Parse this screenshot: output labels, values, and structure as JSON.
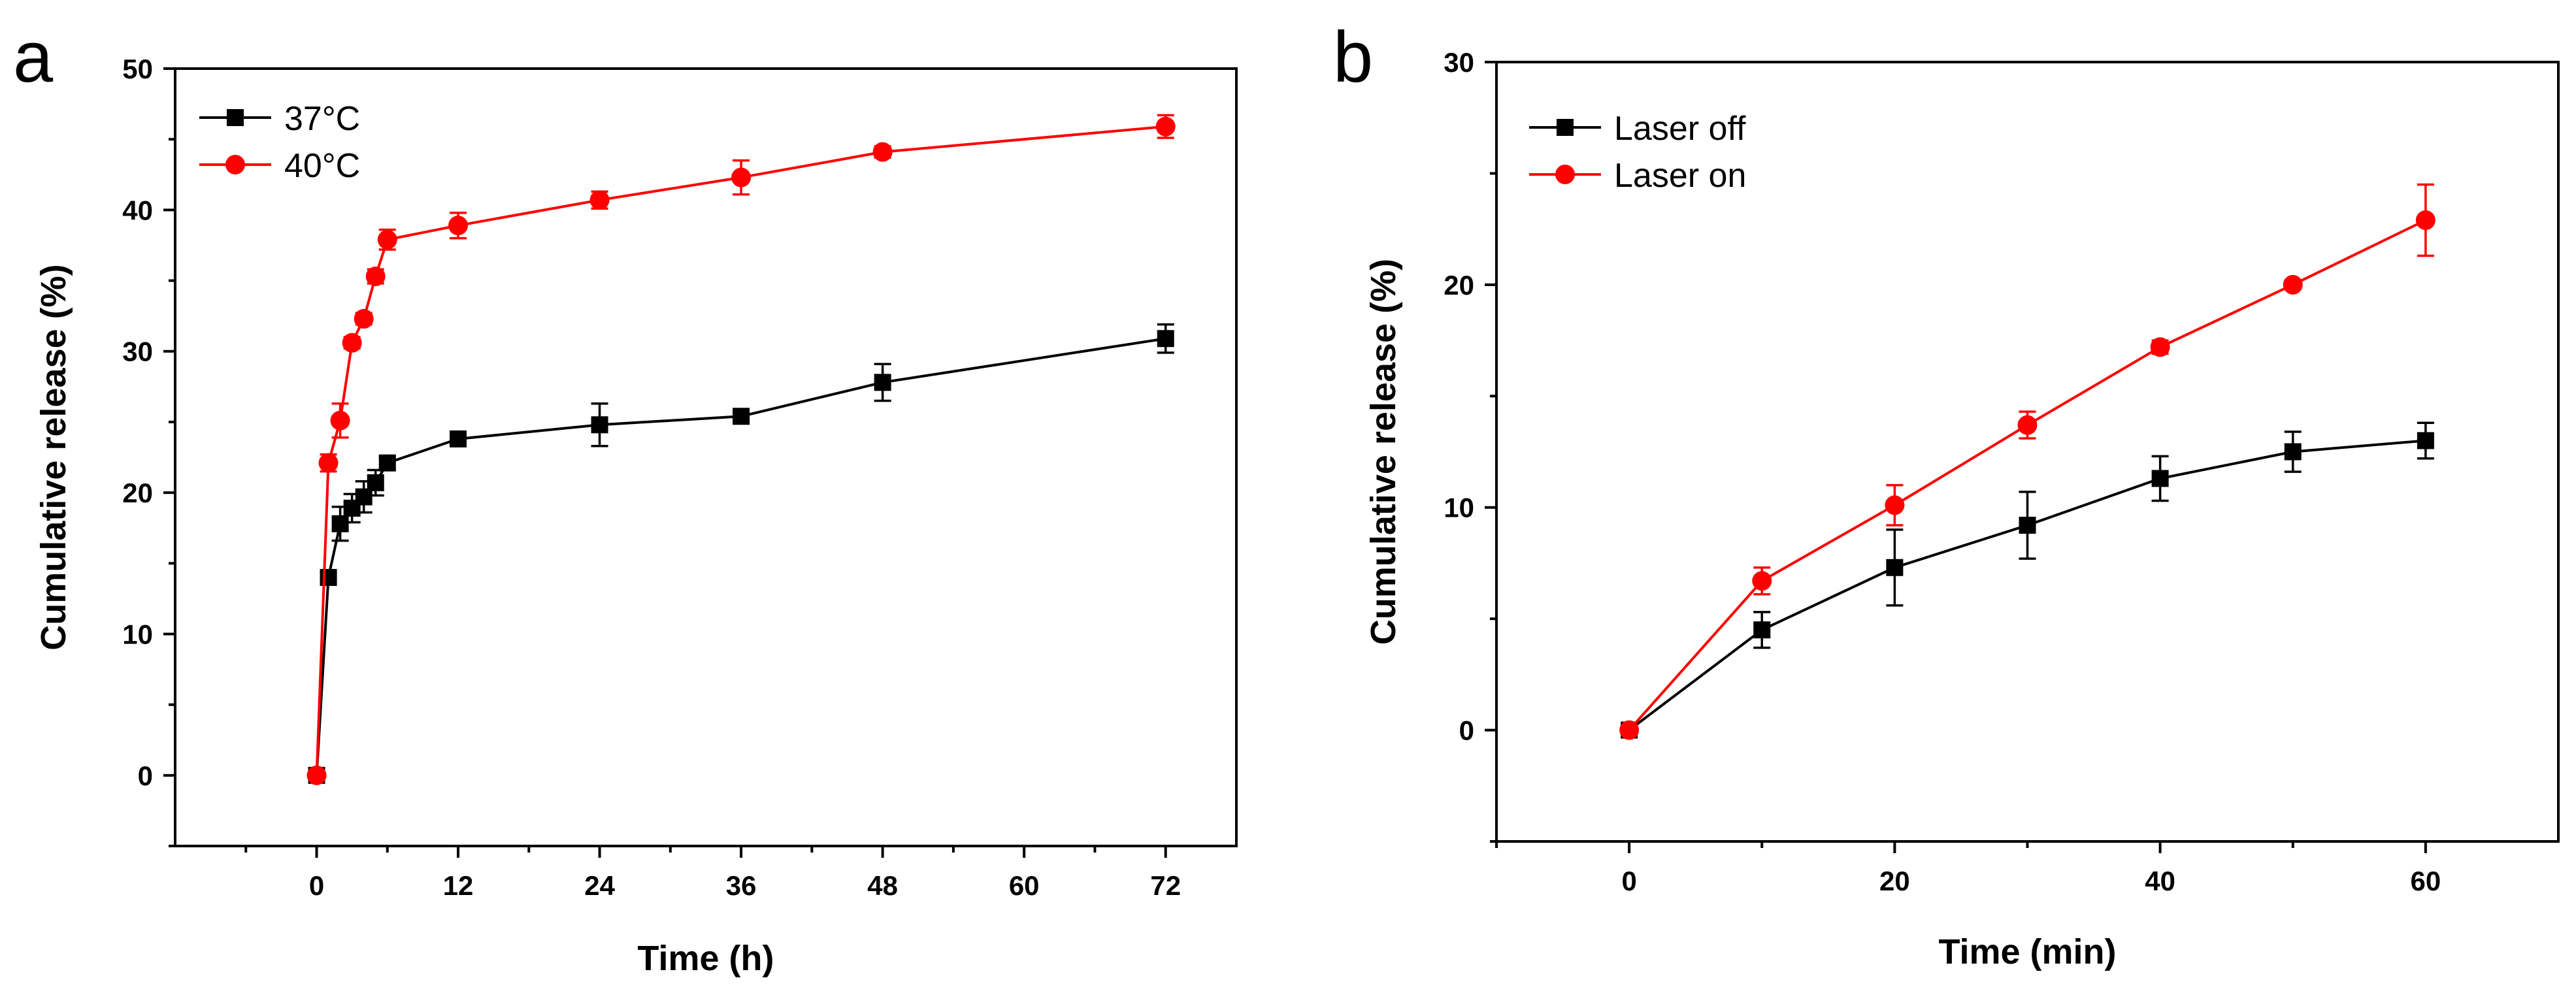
{
  "chart_data": [
    {
      "panel": "a",
      "type": "line",
      "xlabel": "Time (h)",
      "ylabel": "Cumulative release (%)",
      "xlim": [
        -12,
        78
      ],
      "ylim": [
        -5,
        50
      ],
      "xticks": [
        0,
        12,
        24,
        36,
        48,
        60,
        72
      ],
      "yticks": [
        0,
        10,
        20,
        30,
        40,
        50
      ],
      "legend": "top-left",
      "grid": false,
      "series": [
        {
          "name": "37°C",
          "color": "#000000",
          "marker": "square",
          "x": [
            0,
            1,
            2,
            3,
            4,
            5,
            6,
            12,
            24,
            36,
            48,
            72
          ],
          "y": [
            0,
            14.0,
            17.8,
            18.9,
            19.7,
            20.7,
            22.1,
            23.8,
            24.8,
            25.4,
            27.8,
            30.9
          ],
          "err": [
            0,
            0.3,
            1.2,
            1.0,
            1.1,
            0.9,
            0.4,
            0.3,
            1.5,
            0.3,
            1.3,
            1.0
          ]
        },
        {
          "name": "40°C",
          "color": "#ff0000",
          "marker": "circle",
          "x": [
            0,
            1,
            2,
            3,
            4,
            5,
            6,
            12,
            24,
            36,
            48,
            72
          ],
          "y": [
            0,
            22.1,
            25.1,
            30.6,
            32.3,
            35.3,
            37.9,
            38.9,
            40.7,
            42.3,
            44.1,
            45.9
          ],
          "err": [
            0,
            0.6,
            1.2,
            0.4,
            0.4,
            0.5,
            0.7,
            0.9,
            0.6,
            1.2,
            0.4,
            0.8
          ]
        }
      ]
    },
    {
      "panel": "b",
      "type": "line",
      "xlabel": "Time (min)",
      "ylabel": "Cumulative release (%)",
      "xlim": [
        -10,
        70
      ],
      "ylim": [
        -5,
        30
      ],
      "xticks": [
        0,
        20,
        40,
        60
      ],
      "yticks": [
        0,
        10,
        20,
        30
      ],
      "legend": "top-left",
      "grid": false,
      "series": [
        {
          "name": "Laser off",
          "color": "#000000",
          "marker": "square",
          "x": [
            0,
            10,
            20,
            30,
            40,
            50,
            60
          ],
          "y": [
            0,
            4.5,
            7.3,
            9.2,
            11.3,
            12.5,
            13.0
          ],
          "err": [
            0,
            0.8,
            1.7,
            1.5,
            1.0,
            0.9,
            0.8
          ]
        },
        {
          "name": "Laser on",
          "color": "#ff0000",
          "marker": "circle",
          "x": [
            0,
            10,
            20,
            30,
            40,
            50,
            60
          ],
          "y": [
            0,
            6.7,
            10.1,
            13.7,
            17.2,
            20.0,
            22.9
          ],
          "err": [
            0,
            0.6,
            0.9,
            0.6,
            0.3,
            0.2,
            1.6
          ]
        }
      ]
    }
  ]
}
